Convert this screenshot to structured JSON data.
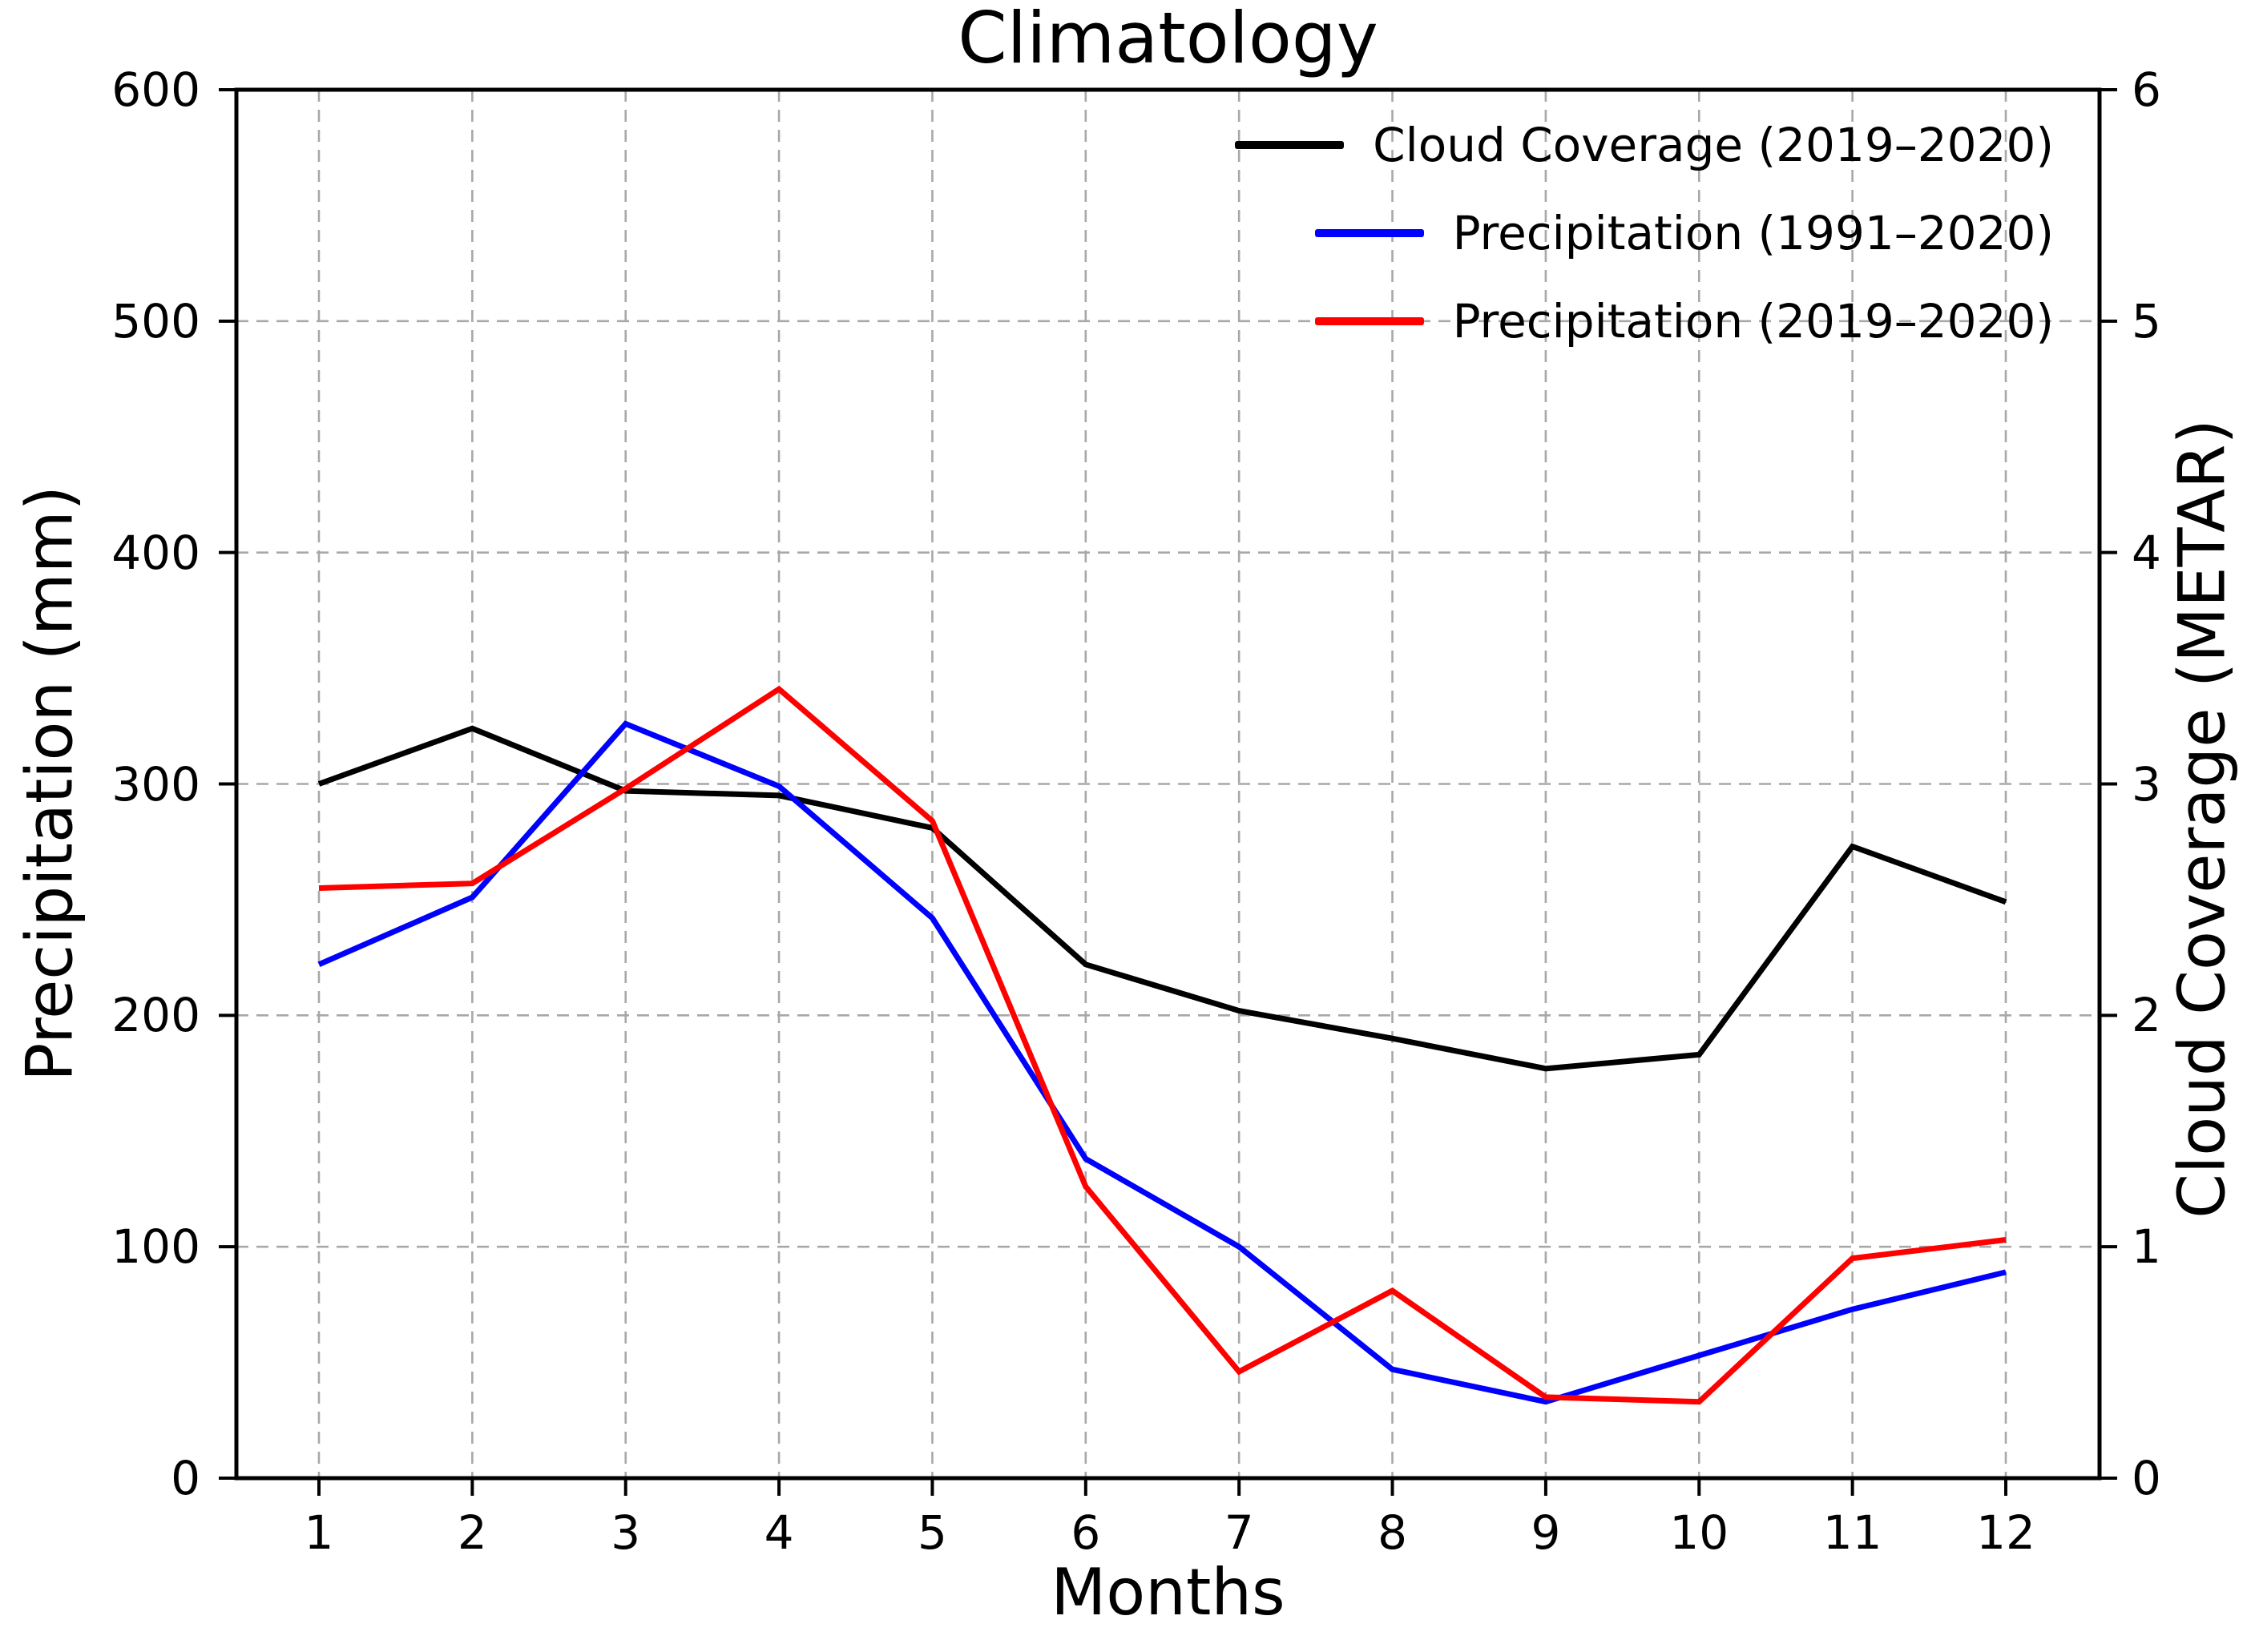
{
  "figure": {
    "title": "Climatology",
    "xlabel": "Months",
    "ylabel_left": "Precipitation (mm)",
    "ylabel_right": "Cloud Coverage (METAR)"
  },
  "chart_data": {
    "type": "line",
    "title": "Climatology",
    "xlabel": "Months",
    "ylabel_left": "Precipitation (mm)",
    "ylabel_right": "Cloud Coverage (METAR)",
    "x": [
      1,
      2,
      3,
      4,
      5,
      6,
      7,
      8,
      9,
      10,
      11,
      12
    ],
    "x_tick_labels": [
      "1",
      "2",
      "3",
      "4",
      "5",
      "6",
      "7",
      "8",
      "9",
      "10",
      "11",
      "12"
    ],
    "ylim_left": [
      0,
      600
    ],
    "ylim_right": [
      0,
      6
    ],
    "y_left_ticks": [
      0,
      100,
      200,
      300,
      400,
      500,
      600
    ],
    "y_right_ticks": [
      0,
      1,
      2,
      3,
      4,
      5,
      6
    ],
    "grid": true,
    "grid_style": "dashed",
    "legend_position": "upper right",
    "series": [
      {
        "name": "Cloud Coverage (2019–2020)",
        "axis": "right",
        "color": "#000000",
        "values": [
          3.0,
          3.24,
          2.97,
          2.95,
          2.81,
          2.22,
          2.02,
          1.9,
          1.77,
          1.83,
          2.73,
          2.49
        ]
      },
      {
        "name": "Precipitation (1991–2020)",
        "axis": "left",
        "color": "#0000ff",
        "values": [
          222,
          251,
          326,
          299,
          242,
          138,
          100,
          47,
          33,
          53,
          73,
          89
        ]
      },
      {
        "name": "Precipitation (2019–2020)",
        "axis": "left",
        "color": "#ff0000",
        "values": [
          255,
          257,
          298,
          341,
          284,
          126,
          46,
          81,
          35,
          33,
          95,
          103
        ]
      }
    ]
  },
  "colors": {
    "axis": "#000000",
    "grid": "#a8a8a8",
    "background": "#ffffff"
  }
}
